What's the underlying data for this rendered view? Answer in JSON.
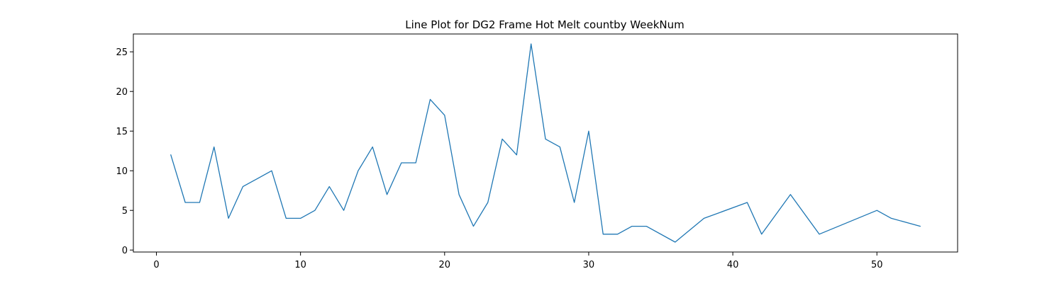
{
  "chart_data": {
    "type": "line",
    "title": "Line Plot for DG2 Frame Hot Melt countby WeekNum",
    "xlabel": "",
    "ylabel": "",
    "xlim": [
      -1.6,
      55.6
    ],
    "ylim": [
      -0.25,
      27.25
    ],
    "x_ticks": [
      0,
      10,
      20,
      30,
      40,
      50
    ],
    "y_ticks": [
      0,
      5,
      10,
      15,
      20,
      25
    ],
    "grid": false,
    "series": [
      {
        "color": "#1f77b4",
        "x": [
          1,
          2,
          3,
          4,
          5,
          6,
          7,
          8,
          9,
          10,
          11,
          12,
          13,
          14,
          15,
          16,
          17,
          18,
          19,
          20,
          21,
          22,
          23,
          24,
          25,
          26,
          27,
          28,
          29,
          30,
          31,
          32,
          33,
          34,
          36,
          38,
          41,
          42,
          44,
          46,
          50,
          51,
          53
        ],
        "y": [
          12,
          6,
          6,
          13,
          4,
          8,
          9,
          10,
          4,
          4,
          5,
          8,
          5,
          10,
          13,
          7,
          11,
          11,
          19,
          17,
          7,
          3,
          6,
          14,
          12,
          26,
          14,
          13,
          6,
          15,
          2,
          2,
          3,
          3,
          1,
          4,
          6,
          2,
          7,
          2,
          5,
          4,
          3
        ]
      }
    ]
  }
}
